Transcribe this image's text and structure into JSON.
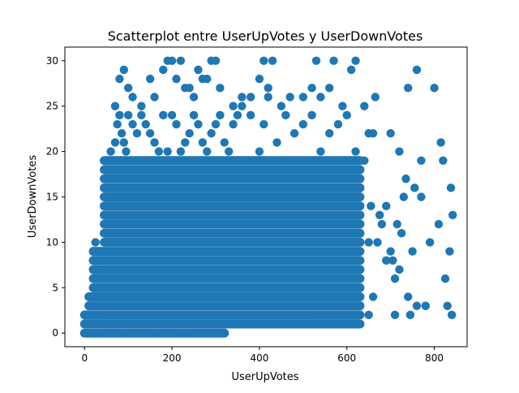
{
  "chart_data": {
    "type": "scatter",
    "title": "Scatterplot entre UserUpVotes y UserDownVotes",
    "xlabel": "UserUpVotes",
    "ylabel": "UserDownVotes",
    "xlim": [
      -45,
      875
    ],
    "ylim": [
      -1.5,
      31.5
    ],
    "xticks": [
      0,
      200,
      400,
      600,
      800
    ],
    "yticks": [
      0,
      5,
      10,
      15,
      20,
      25,
      30
    ],
    "grid": false,
    "marker_color": "#1f77b4",
    "dense_region": {
      "description_x_range": [
        0,
        630
      ],
      "y_range": [
        0,
        19
      ],
      "y_step": 1
    },
    "points": [
      {
        "x": 0,
        "y": 0
      },
      {
        "x": 0,
        "y": 1
      },
      {
        "x": 0,
        "y": 2
      },
      {
        "x": 10,
        "y": 3
      },
      {
        "x": 15,
        "y": 4
      },
      {
        "x": 20,
        "y": 5
      },
      {
        "x": 25,
        "y": 7
      },
      {
        "x": 30,
        "y": 8
      },
      {
        "x": 25,
        "y": 10
      },
      {
        "x": 35,
        "y": 9
      },
      {
        "x": 50,
        "y": 0
      },
      {
        "x": 100,
        "y": 0
      },
      {
        "x": 150,
        "y": 0
      },
      {
        "x": 200,
        "y": 0
      },
      {
        "x": 250,
        "y": 0
      },
      {
        "x": 280,
        "y": 0
      },
      {
        "x": 310,
        "y": 0
      },
      {
        "x": 60,
        "y": 20
      },
      {
        "x": 70,
        "y": 21
      },
      {
        "x": 75,
        "y": 23
      },
      {
        "x": 80,
        "y": 24
      },
      {
        "x": 85,
        "y": 22
      },
      {
        "x": 90,
        "y": 21
      },
      {
        "x": 95,
        "y": 20
      },
      {
        "x": 100,
        "y": 24
      },
      {
        "x": 110,
        "y": 23
      },
      {
        "x": 120,
        "y": 22
      },
      {
        "x": 130,
        "y": 24
      },
      {
        "x": 140,
        "y": 23
      },
      {
        "x": 150,
        "y": 22
      },
      {
        "x": 160,
        "y": 21
      },
      {
        "x": 170,
        "y": 20
      },
      {
        "x": 180,
        "y": 24
      },
      {
        "x": 190,
        "y": 20
      },
      {
        "x": 200,
        "y": 24
      },
      {
        "x": 210,
        "y": 23
      },
      {
        "x": 220,
        "y": 20
      },
      {
        "x": 230,
        "y": 21
      },
      {
        "x": 240,
        "y": 22
      },
      {
        "x": 250,
        "y": 24
      },
      {
        "x": 260,
        "y": 23
      },
      {
        "x": 270,
        "y": 21
      },
      {
        "x": 280,
        "y": 20
      },
      {
        "x": 290,
        "y": 22
      },
      {
        "x": 300,
        "y": 23
      },
      {
        "x": 310,
        "y": 24
      },
      {
        "x": 320,
        "y": 21
      },
      {
        "x": 330,
        "y": 20
      },
      {
        "x": 340,
        "y": 23
      },
      {
        "x": 350,
        "y": 24
      },
      {
        "x": 360,
        "y": 25
      },
      {
        "x": 380,
        "y": 24
      },
      {
        "x": 400,
        "y": 20
      },
      {
        "x": 410,
        "y": 23
      },
      {
        "x": 420,
        "y": 26
      },
      {
        "x": 440,
        "y": 21
      },
      {
        "x": 460,
        "y": 24
      },
      {
        "x": 480,
        "y": 22
      },
      {
        "x": 500,
        "y": 23
      },
      {
        "x": 520,
        "y": 24
      },
      {
        "x": 540,
        "y": 20
      },
      {
        "x": 560,
        "y": 22
      },
      {
        "x": 580,
        "y": 23
      },
      {
        "x": 600,
        "y": 24
      },
      {
        "x": 620,
        "y": 20
      },
      {
        "x": 70,
        "y": 25
      },
      {
        "x": 80,
        "y": 28
      },
      {
        "x": 90,
        "y": 29
      },
      {
        "x": 100,
        "y": 27
      },
      {
        "x": 110,
        "y": 26
      },
      {
        "x": 130,
        "y": 25
      },
      {
        "x": 150,
        "y": 28
      },
      {
        "x": 160,
        "y": 26
      },
      {
        "x": 180,
        "y": 29
      },
      {
        "x": 190,
        "y": 30
      },
      {
        "x": 200,
        "y": 30
      },
      {
        "x": 210,
        "y": 28
      },
      {
        "x": 220,
        "y": 30
      },
      {
        "x": 230,
        "y": 27
      },
      {
        "x": 240,
        "y": 27
      },
      {
        "x": 250,
        "y": 26
      },
      {
        "x": 260,
        "y": 29
      },
      {
        "x": 270,
        "y": 28
      },
      {
        "x": 280,
        "y": 28
      },
      {
        "x": 290,
        "y": 30
      },
      {
        "x": 300,
        "y": 30
      },
      {
        "x": 310,
        "y": 27
      },
      {
        "x": 340,
        "y": 25
      },
      {
        "x": 360,
        "y": 26
      },
      {
        "x": 380,
        "y": 26
      },
      {
        "x": 400,
        "y": 28
      },
      {
        "x": 410,
        "y": 30
      },
      {
        "x": 420,
        "y": 27
      },
      {
        "x": 430,
        "y": 30
      },
      {
        "x": 450,
        "y": 25
      },
      {
        "x": 470,
        "y": 26
      },
      {
        "x": 500,
        "y": 26
      },
      {
        "x": 520,
        "y": 27
      },
      {
        "x": 530,
        "y": 30
      },
      {
        "x": 540,
        "y": 26
      },
      {
        "x": 560,
        "y": 27
      },
      {
        "x": 570,
        "y": 30
      },
      {
        "x": 590,
        "y": 25
      },
      {
        "x": 610,
        "y": 29
      },
      {
        "x": 620,
        "y": 30
      },
      {
        "x": 640,
        "y": 25
      },
      {
        "x": 650,
        "y": 22
      },
      {
        "x": 640,
        "y": 19
      },
      {
        "x": 650,
        "y": 10
      },
      {
        "x": 655,
        "y": 14
      },
      {
        "x": 660,
        "y": 22
      },
      {
        "x": 665,
        "y": 26
      },
      {
        "x": 670,
        "y": 10
      },
      {
        "x": 675,
        "y": 13
      },
      {
        "x": 680,
        "y": 12
      },
      {
        "x": 690,
        "y": 14
      },
      {
        "x": 700,
        "y": 9
      },
      {
        "x": 705,
        "y": 8
      },
      {
        "x": 710,
        "y": 6
      },
      {
        "x": 715,
        "y": 12
      },
      {
        "x": 720,
        "y": 7
      },
      {
        "x": 725,
        "y": 11
      },
      {
        "x": 730,
        "y": 15
      },
      {
        "x": 735,
        "y": 17
      },
      {
        "x": 740,
        "y": 4
      },
      {
        "x": 745,
        "y": 2
      },
      {
        "x": 750,
        "y": 9
      },
      {
        "x": 755,
        "y": 16
      },
      {
        "x": 760,
        "y": 3
      },
      {
        "x": 770,
        "y": 15
      },
      {
        "x": 780,
        "y": 3
      },
      {
        "x": 790,
        "y": 10
      },
      {
        "x": 800,
        "y": 27
      },
      {
        "x": 810,
        "y": 12
      },
      {
        "x": 815,
        "y": 21
      },
      {
        "x": 820,
        "y": 19
      },
      {
        "x": 825,
        "y": 6
      },
      {
        "x": 830,
        "y": 3
      },
      {
        "x": 835,
        "y": 9
      },
      {
        "x": 838,
        "y": 16
      },
      {
        "x": 840,
        "y": 2
      },
      {
        "x": 842,
        "y": 13
      },
      {
        "x": 700,
        "y": 22
      },
      {
        "x": 710,
        "y": 2
      },
      {
        "x": 720,
        "y": 20
      },
      {
        "x": 740,
        "y": 27
      },
      {
        "x": 760,
        "y": 29
      },
      {
        "x": 770,
        "y": 19
      },
      {
        "x": 780,
        "y": 3
      },
      {
        "x": 660,
        "y": 4
      },
      {
        "x": 650,
        "y": 2
      },
      {
        "x": 690,
        "y": 8
      }
    ]
  }
}
